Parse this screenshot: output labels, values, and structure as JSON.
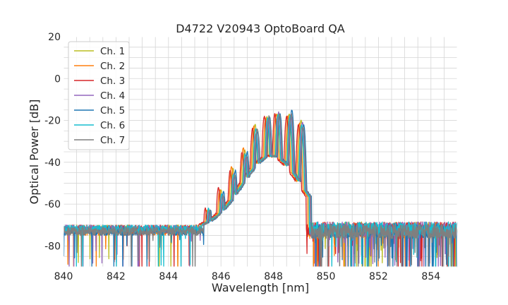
{
  "chart_data": {
    "type": "line",
    "title": "D4722 V20943 OptoBoard QA",
    "xlabel": "Wavelength [nm]",
    "ylabel": "Optical Power [dB]",
    "xlim": [
      840,
      855
    ],
    "ylim": [
      -90,
      20
    ],
    "xticks": [
      840,
      842,
      844,
      846,
      848,
      850,
      852,
      854
    ],
    "yticks": [
      -80,
      -60,
      -40,
      -20,
      0,
      20
    ],
    "grid": true,
    "legend_position": "top-left",
    "series": [
      {
        "name": "Ch. 1",
        "color": "#bcbd22",
        "noise_floor": -72,
        "shift": 0.0,
        "comb": [
          [
            845.5,
            -63
          ],
          [
            846.0,
            -53
          ],
          [
            846.45,
            -43
          ],
          [
            846.9,
            -34
          ],
          [
            847.3,
            -22
          ],
          [
            847.75,
            -18
          ],
          [
            848.15,
            -17
          ],
          [
            848.6,
            -17
          ],
          [
            849.05,
            -20
          ]
        ]
      },
      {
        "name": "Ch. 2",
        "color": "#ff7f0e",
        "noise_floor": -73,
        "shift": -0.05,
        "comb": [
          [
            845.5,
            -63
          ],
          [
            846.0,
            -53
          ],
          [
            846.45,
            -42
          ],
          [
            846.9,
            -33
          ],
          [
            847.3,
            -23
          ],
          [
            847.75,
            -19
          ],
          [
            848.15,
            -17
          ],
          [
            848.6,
            -18
          ],
          [
            849.05,
            -21
          ]
        ]
      },
      {
        "name": "Ch. 3",
        "color": "#d62728",
        "noise_floor": -72,
        "shift": -0.1,
        "comb": [
          [
            845.5,
            -62
          ],
          [
            846.0,
            -52
          ],
          [
            846.45,
            -44
          ],
          [
            846.9,
            -35
          ],
          [
            847.3,
            -24
          ],
          [
            847.75,
            -18
          ],
          [
            848.15,
            -17
          ],
          [
            848.6,
            -18
          ],
          [
            849.05,
            -22
          ]
        ]
      },
      {
        "name": "Ch. 4",
        "color": "#9467bd",
        "noise_floor": -72,
        "shift": 0.05,
        "comb": [
          [
            845.5,
            -63
          ],
          [
            846.0,
            -55
          ],
          [
            846.45,
            -45
          ],
          [
            846.9,
            -37
          ],
          [
            847.3,
            -26
          ],
          [
            847.75,
            -19
          ],
          [
            848.15,
            -16
          ],
          [
            848.6,
            -17
          ],
          [
            849.05,
            -21
          ]
        ]
      },
      {
        "name": "Ch. 5",
        "color": "#1f77b4",
        "noise_floor": -73,
        "shift": 0.1,
        "comb": [
          [
            845.5,
            -63
          ],
          [
            846.0,
            -54
          ],
          [
            846.45,
            -44
          ],
          [
            846.9,
            -35
          ],
          [
            847.3,
            -25
          ],
          [
            847.75,
            -18
          ],
          [
            848.15,
            -17
          ],
          [
            848.6,
            -15
          ],
          [
            849.05,
            -22
          ]
        ]
      },
      {
        "name": "Ch. 6",
        "color": "#17becf",
        "noise_floor": -72,
        "shift": 0.02,
        "comb": [
          [
            845.5,
            -62
          ],
          [
            846.0,
            -55
          ],
          [
            846.45,
            -46
          ],
          [
            846.9,
            -36
          ],
          [
            847.3,
            -24
          ],
          [
            847.75,
            -19
          ],
          [
            848.15,
            -17
          ],
          [
            848.6,
            -18
          ],
          [
            849.05,
            -22
          ]
        ]
      },
      {
        "name": "Ch. 7",
        "color": "#7f7f7f",
        "noise_floor": -73,
        "shift": 0.08,
        "comb": [
          [
            845.5,
            -63
          ],
          [
            846.0,
            -56
          ],
          [
            846.45,
            -46
          ],
          [
            846.9,
            -37
          ],
          [
            847.3,
            -24
          ],
          [
            847.75,
            -18
          ],
          [
            848.15,
            -17
          ],
          [
            848.6,
            -17
          ],
          [
            849.05,
            -23
          ]
        ]
      }
    ]
  }
}
